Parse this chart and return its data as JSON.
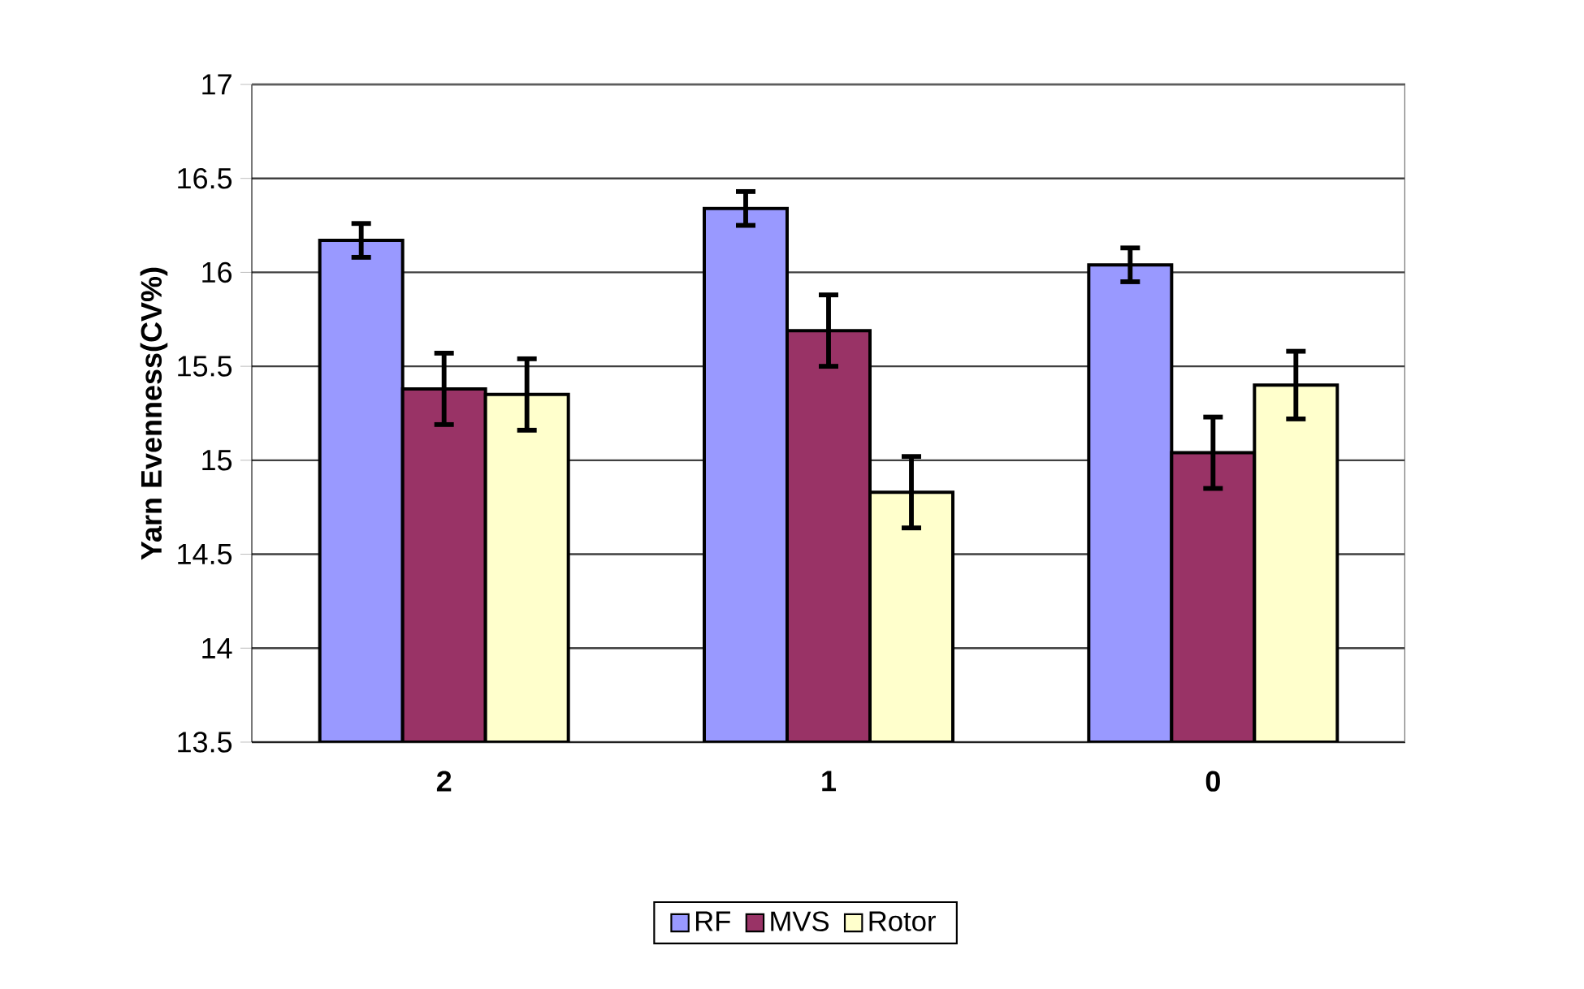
{
  "chart_data": {
    "type": "bar",
    "ylabel": "Yarn Evenness(CV%)",
    "categories": [
      "2",
      "1",
      "0"
    ],
    "series": [
      {
        "name": "RF",
        "color": "#9999ff",
        "values": [
          16.17,
          16.34,
          16.04
        ],
        "errors": [
          0.09,
          0.09,
          0.09
        ]
      },
      {
        "name": "MVS",
        "color": "#993366",
        "values": [
          15.38,
          15.69,
          15.04
        ],
        "errors": [
          0.19,
          0.19,
          0.19
        ]
      },
      {
        "name": "Rotor",
        "color": "#ffffcc",
        "values": [
          15.35,
          14.83,
          15.4
        ],
        "errors": [
          0.19,
          0.19,
          0.18
        ]
      }
    ],
    "ylim": [
      13.5,
      17
    ],
    "yticks": [
      13.5,
      14,
      14.5,
      15,
      15.5,
      16,
      16.5,
      17
    ],
    "grid": "y",
    "legend": "bottom"
  }
}
